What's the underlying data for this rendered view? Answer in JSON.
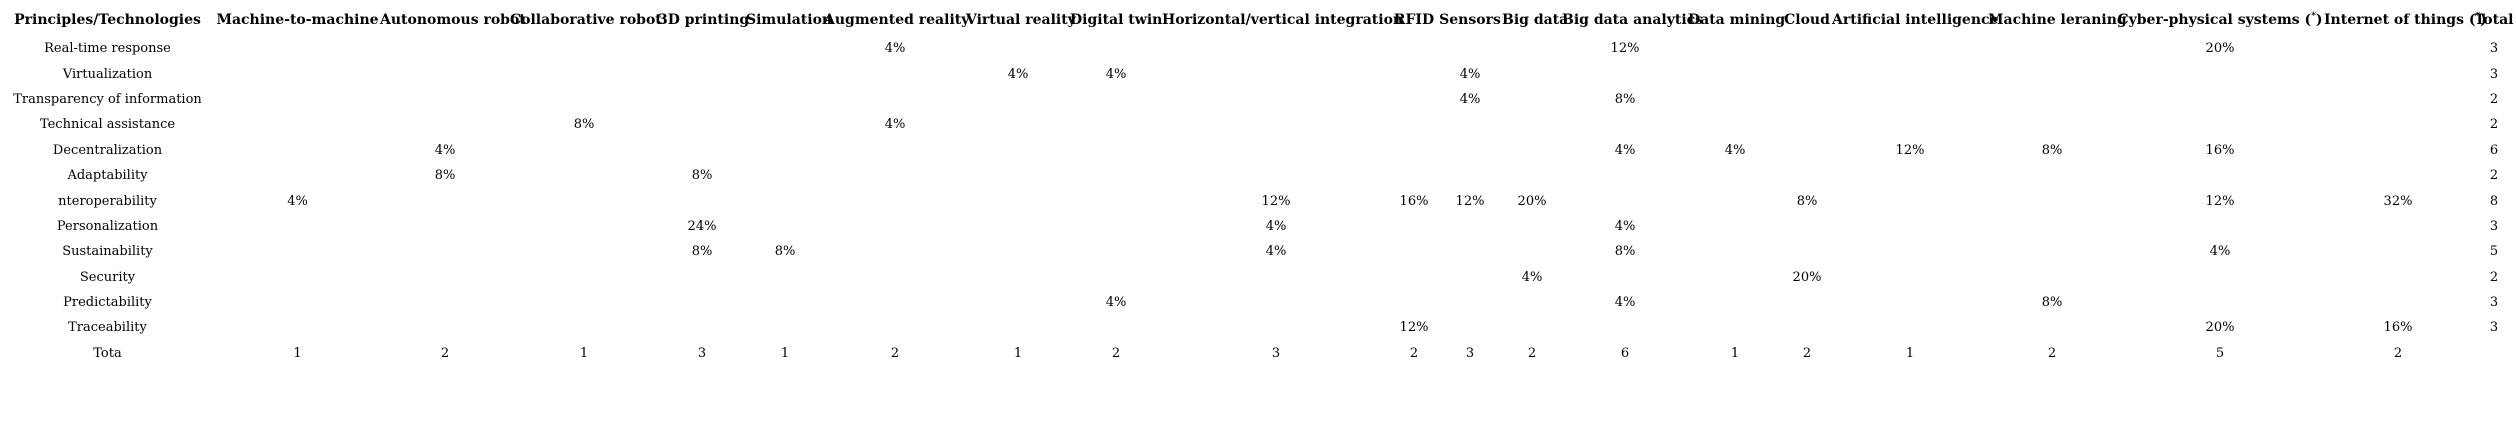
{
  "table": {
    "first_column_header": "Principles/Technologies",
    "total_header": "Total",
    "columns": [
      {
        "label": "Machine-to-machine"
      },
      {
        "label": "Autonomous robot"
      },
      {
        "label": "Collaborative robot"
      },
      {
        "label": "3D printing"
      },
      {
        "label": "Simulation"
      },
      {
        "label": "Augmented reality"
      },
      {
        "label": "Virtual reality"
      },
      {
        "label": "Digital twin"
      },
      {
        "label": "Horizontal/vertical integration"
      },
      {
        "label": "RFID"
      },
      {
        "label": "Sensors"
      },
      {
        "label": "Big data"
      },
      {
        "label": "Big data analytics"
      },
      {
        "label": "Data mining"
      },
      {
        "label": "Cloud"
      },
      {
        "label": "Artificial intelligence"
      },
      {
        "label": "Machine leraning"
      },
      {
        "label": "Cyber-physical systems (",
        "sup": "*",
        "post": ")"
      },
      {
        "label": "Internet of things (",
        "sup": "*",
        "post": ")"
      }
    ],
    "rows": [
      {
        "label": "Real-time response",
        "values": [
          "",
          "",
          "",
          "",
          "",
          "4%",
          "",
          "",
          "",
          "",
          "",
          "",
          "12%",
          "",
          "",
          "",
          "",
          "20%",
          ""
        ],
        "total": "3"
      },
      {
        "label": "Virtualization",
        "values": [
          "",
          "",
          "",
          "",
          "",
          "",
          "4%",
          "4%",
          "",
          "",
          "4%",
          "",
          "",
          "",
          "",
          "",
          "",
          "",
          ""
        ],
        "total": "3"
      },
      {
        "label": "Transparency of information",
        "values": [
          "",
          "",
          "",
          "",
          "",
          "",
          "",
          "",
          "",
          "",
          "4%",
          "",
          "8%",
          "",
          "",
          "",
          "",
          "",
          ""
        ],
        "total": "2"
      },
      {
        "label": "Technical assistance",
        "values": [
          "",
          "",
          "8%",
          "",
          "",
          "4%",
          "",
          "",
          "",
          "",
          "",
          "",
          "",
          "",
          "",
          "",
          "",
          "",
          ""
        ],
        "total": "2"
      },
      {
        "label": "Decentralization",
        "values": [
          "",
          "4%",
          "",
          "",
          "",
          "",
          "",
          "",
          "",
          "",
          "",
          "",
          "4%",
          "4%",
          "",
          "12%",
          "8%",
          "16%",
          ""
        ],
        "total": "6"
      },
      {
        "label": "Adaptability",
        "values": [
          "",
          "8%",
          "",
          "8%",
          "",
          "",
          "",
          "",
          "",
          "",
          "",
          "",
          "",
          "",
          "",
          "",
          "",
          "",
          ""
        ],
        "total": "2"
      },
      {
        "label": "nteroperability",
        "values": [
          "4%",
          "",
          "",
          "",
          "",
          "",
          "",
          "",
          "12%",
          "16%",
          "12%",
          "20%",
          "",
          "",
          "8%",
          "",
          "",
          "12%",
          "32%"
        ],
        "total": "8"
      },
      {
        "label": "Personalization",
        "values": [
          "",
          "",
          "",
          "24%",
          "",
          "",
          "",
          "",
          "4%",
          "",
          "",
          "",
          "4%",
          "",
          "",
          "",
          "",
          "",
          ""
        ],
        "total": "3"
      },
      {
        "label": "Sustainability",
        "values": [
          "",
          "",
          "",
          "8%",
          "8%",
          "",
          "",
          "",
          "4%",
          "",
          "",
          "",
          "8%",
          "",
          "",
          "",
          "",
          "4%",
          ""
        ],
        "total": "5"
      },
      {
        "label": "Security",
        "values": [
          "",
          "",
          "",
          "",
          "",
          "",
          "",
          "",
          "",
          "",
          "",
          "4%",
          "",
          "",
          "20%",
          "",
          "",
          "",
          ""
        ],
        "total": "2"
      },
      {
        "label": "Predictability",
        "values": [
          "",
          "",
          "",
          "",
          "",
          "",
          "",
          "4%",
          "",
          "",
          "",
          "",
          "4%",
          "",
          "",
          "",
          "8%",
          "",
          ""
        ],
        "total": "3"
      },
      {
        "label": "Traceability",
        "values": [
          "",
          "",
          "",
          "",
          "",
          "",
          "",
          "",
          "",
          "12%",
          "",
          "",
          "",
          "",
          "",
          "",
          "",
          "20%",
          "16%"
        ],
        "total": "3"
      },
      {
        "label": "Tota",
        "values": [
          "1",
          "2",
          "1",
          "3",
          "1",
          "2",
          "1",
          "2",
          "3",
          "2",
          "3",
          "2",
          "6",
          "1",
          "2",
          "1",
          "2",
          "5",
          "2"
        ],
        "total": ""
      }
    ]
  }
}
